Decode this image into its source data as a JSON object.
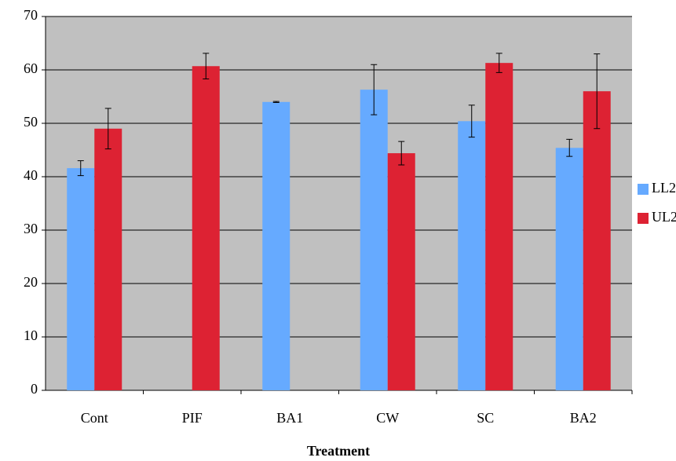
{
  "chart_data": {
    "type": "bar",
    "x_label": "Treatment",
    "categories": [
      "Cont",
      "PIF",
      "BA1",
      "CW",
      "SC",
      "BA2"
    ],
    "series": [
      {
        "name": "LL2",
        "color": "#66aaff",
        "values": [
          41.6,
          0,
          54.0,
          56.3,
          50.4,
          45.4
        ],
        "errors": [
          1.4,
          null,
          0.1,
          4.7,
          3.0,
          1.6
        ]
      },
      {
        "name": "UL2",
        "color": "#dd2233",
        "values": [
          49.0,
          60.7,
          0,
          44.4,
          61.3,
          56.0
        ],
        "errors": [
          3.8,
          2.4,
          null,
          2.2,
          1.8,
          7.0
        ]
      }
    ],
    "ylim": [
      0,
      70
    ],
    "yticks": [
      0,
      10,
      20,
      30,
      40,
      50,
      60,
      70
    ],
    "grid": true,
    "plot_background": "#c0c0c0",
    "legend": "right"
  }
}
